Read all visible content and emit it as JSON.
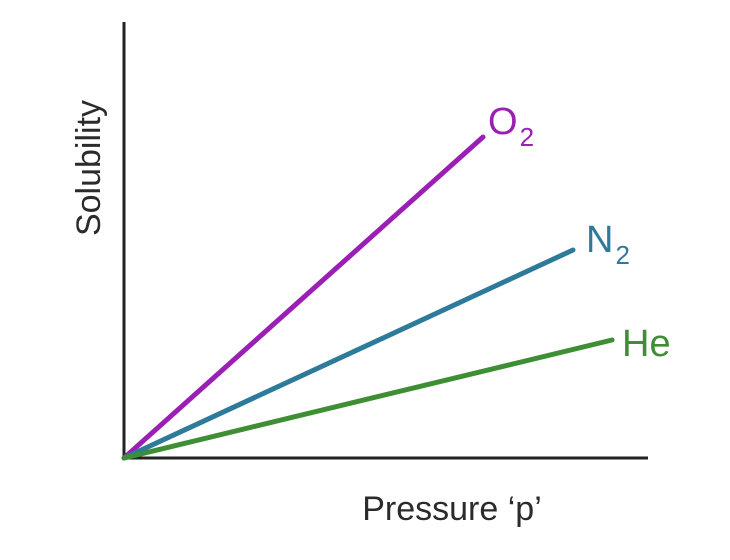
{
  "chart_data": {
    "type": "line",
    "title": "",
    "xlabel": "Pressure ‘p’",
    "ylabel": "Solubility",
    "grid": false,
    "legend": "none",
    "axis_color": "#222222",
    "series": [
      {
        "name": "O2",
        "label_main": "O",
        "label_sub": "2",
        "color": "#9b1fb5",
        "x": [
          0,
          1
        ],
        "y": [
          0,
          1
        ]
      },
      {
        "name": "N2",
        "label_main": "N",
        "label_sub": "2",
        "color": "#2e7a9a",
        "x": [
          0,
          1
        ],
        "y": [
          0,
          0.64
        ]
      },
      {
        "name": "He",
        "label_main": "He",
        "label_sub": "",
        "color": "#3e8e34",
        "x": [
          0,
          1
        ],
        "y": [
          0,
          0.37
        ]
      }
    ]
  }
}
